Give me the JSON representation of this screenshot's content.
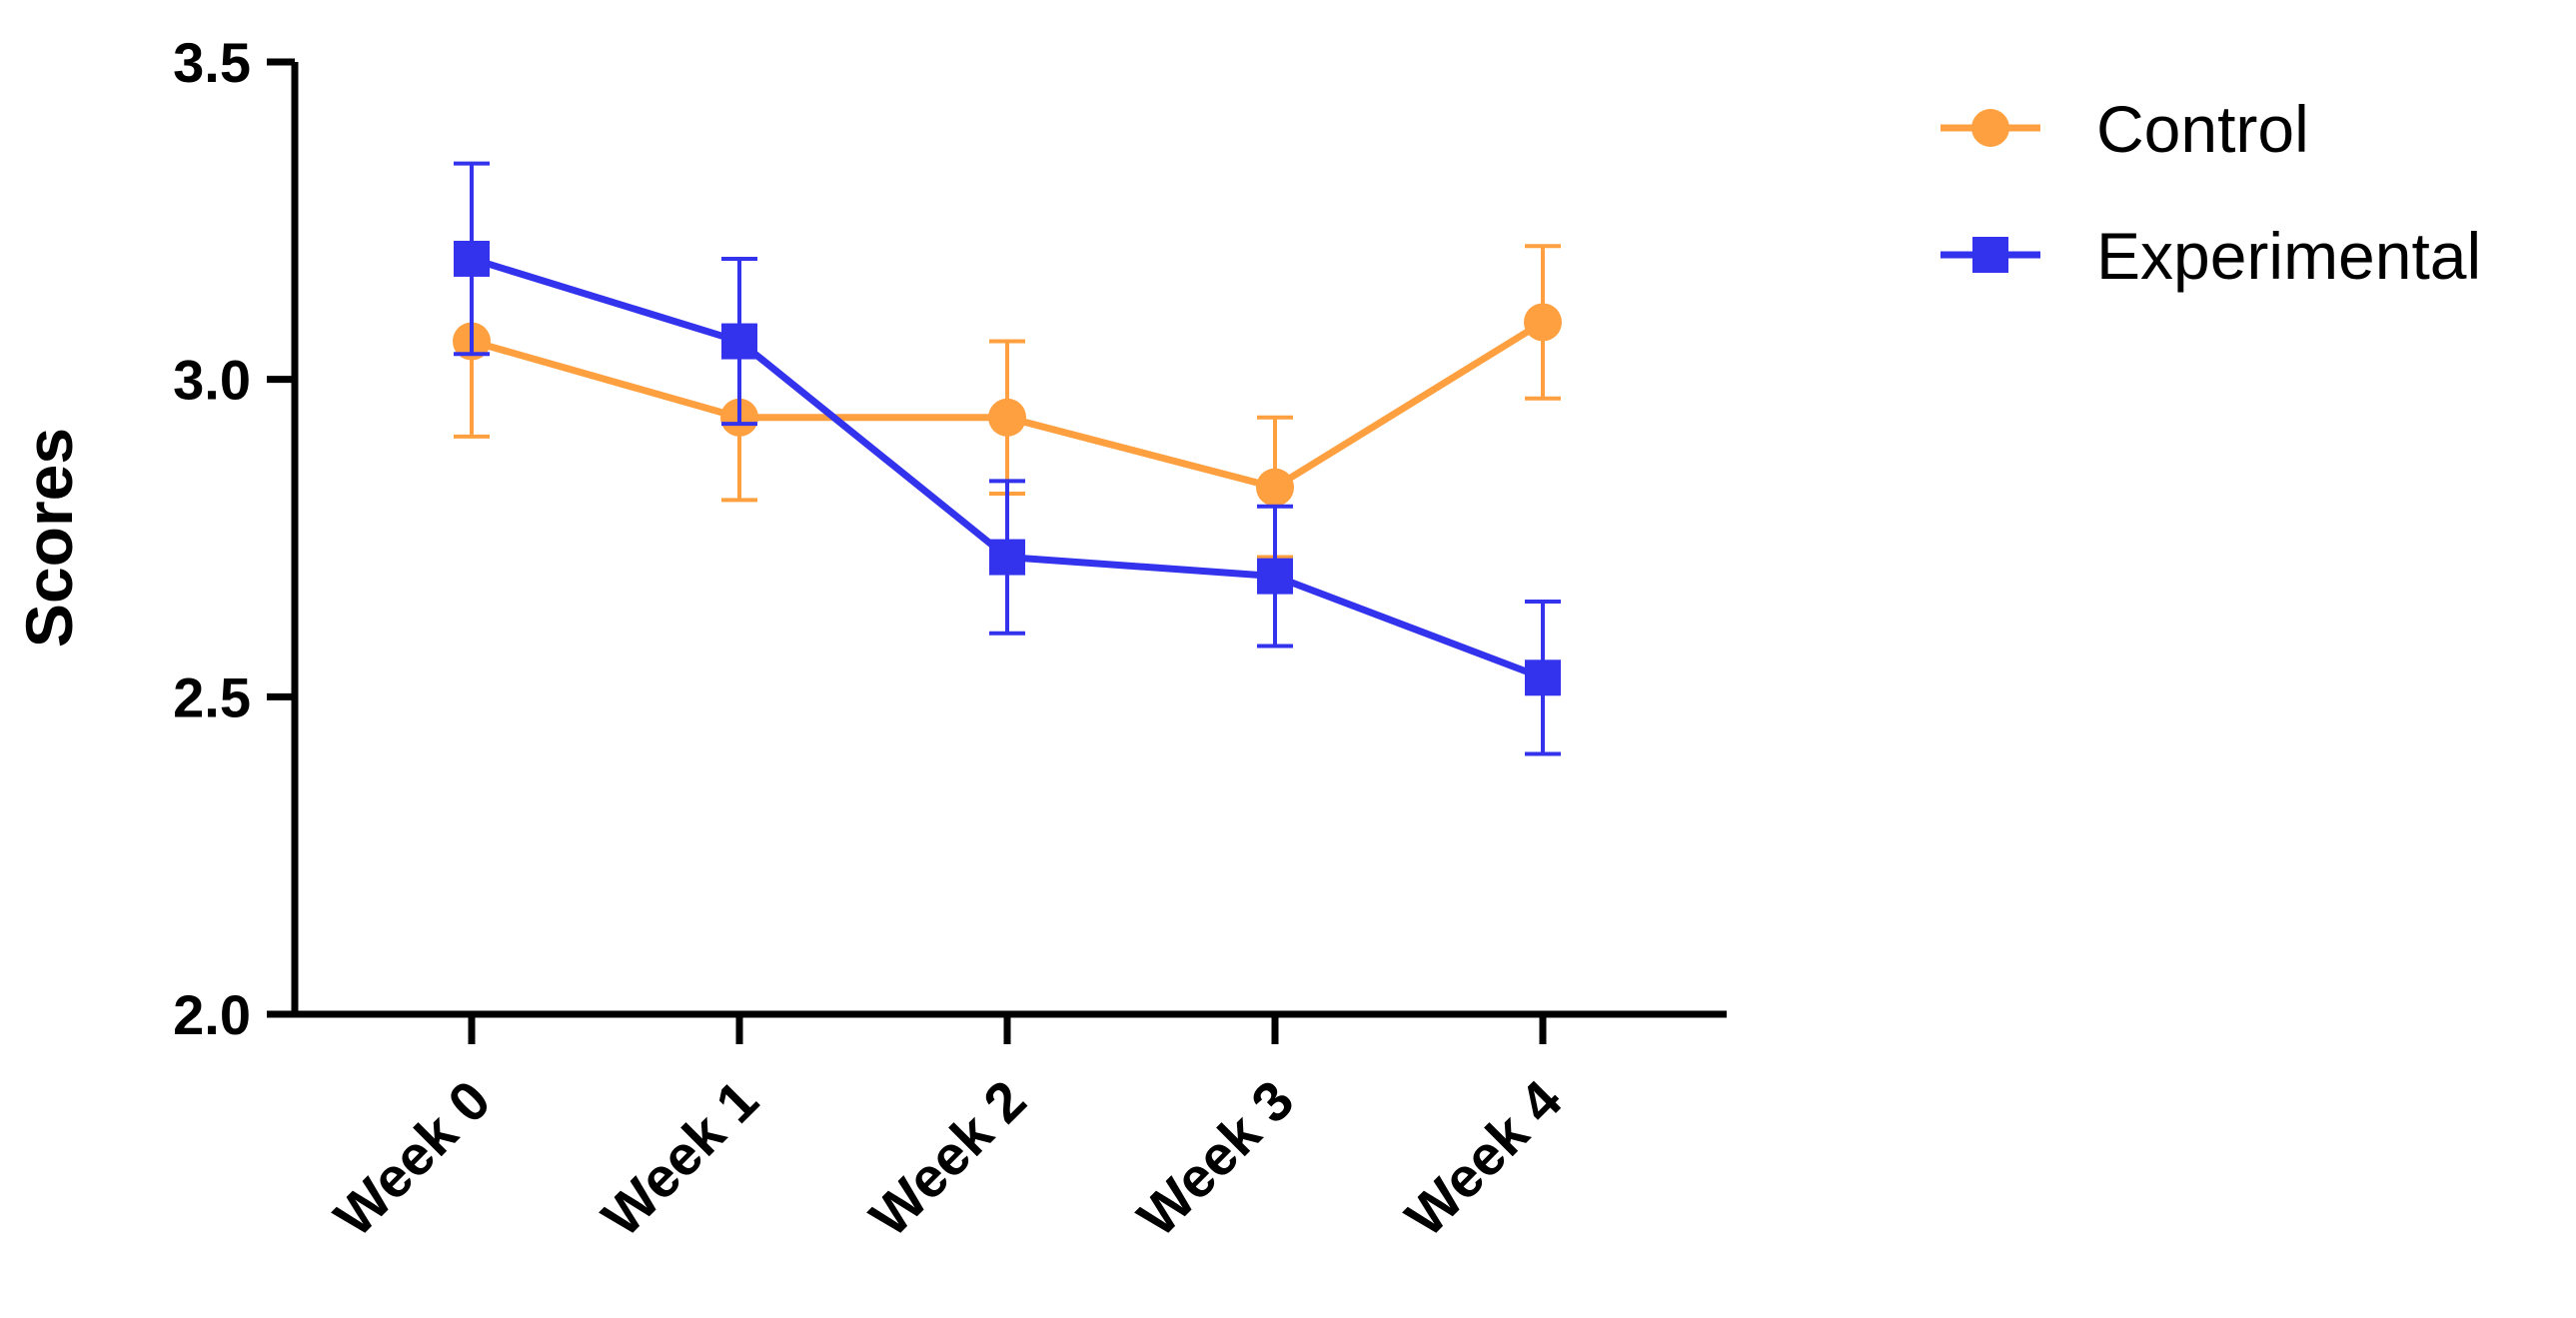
{
  "chart_data": {
    "type": "line",
    "title": "",
    "xlabel": "",
    "ylabel": "Scores",
    "ylim": [
      2.0,
      3.5
    ],
    "yticks": [
      "2.0",
      "2.5",
      "3.0",
      "3.5"
    ],
    "ytick_values": [
      2.0,
      2.5,
      3.0,
      3.5
    ],
    "categories": [
      "Week 0",
      "Week 1",
      "Week 2",
      "Week 3",
      "Week 4"
    ],
    "legend_position": "top-right",
    "series": [
      {
        "name": "Control",
        "color": "#FFA040",
        "marker": "circle",
        "values": [
          3.06,
          2.94,
          2.94,
          2.83,
          3.09
        ],
        "error": [
          0.15,
          0.13,
          0.12,
          0.11,
          0.12
        ]
      },
      {
        "name": "Experimental",
        "color": "#3333EE",
        "marker": "square",
        "values": [
          3.19,
          3.06,
          2.72,
          2.69,
          2.53
        ],
        "error": [
          0.15,
          0.13,
          0.12,
          0.11,
          0.12
        ]
      }
    ]
  }
}
